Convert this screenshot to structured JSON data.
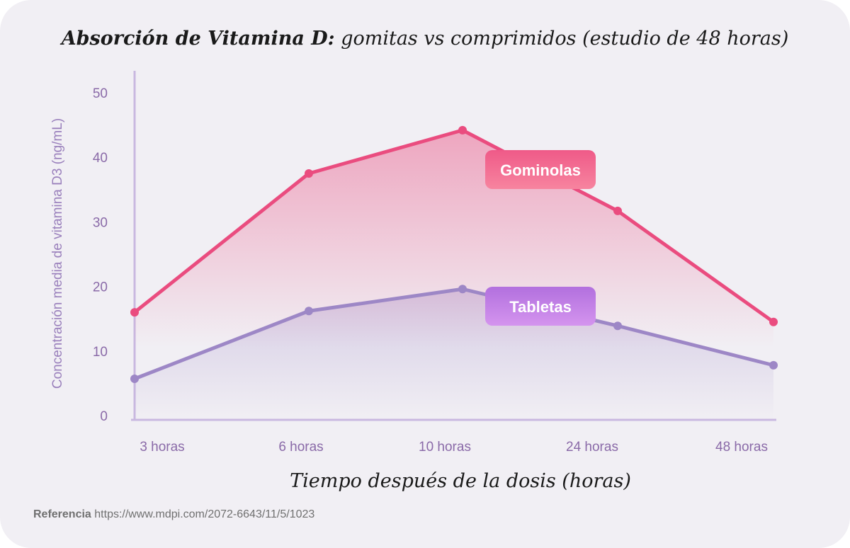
{
  "chart_data": {
    "type": "line",
    "title_bold": "Absorción de Vitamina D:",
    "title_rest": " gomitas vs comprimidos (estudio de 48 horas)",
    "xlabel": "Tiempo después de la dosis (horas)",
    "ylabel": "Concentración media de vitamina D3 (ng/mL)",
    "categories": [
      "3 horas",
      "6 horas",
      "10 horas",
      "24 horas",
      "48 horas"
    ],
    "yticks": [
      "0",
      "10",
      "20",
      "30",
      "40",
      "50"
    ],
    "ylim": [
      0,
      50
    ],
    "grid": false,
    "series": [
      {
        "name": "Gominolas",
        "values": [
          16,
          37.5,
          44.2,
          31.7,
          14.5
        ],
        "color": "#ea4c7f"
      },
      {
        "name": "Tabletas",
        "values": [
          5.7,
          16.2,
          19.6,
          13.9,
          7.8
        ],
        "color": "#9d87c6"
      }
    ]
  },
  "reference": {
    "label": "Referencia",
    "url": "https://www.mdpi.com/2072-6643/11/5/1023"
  }
}
